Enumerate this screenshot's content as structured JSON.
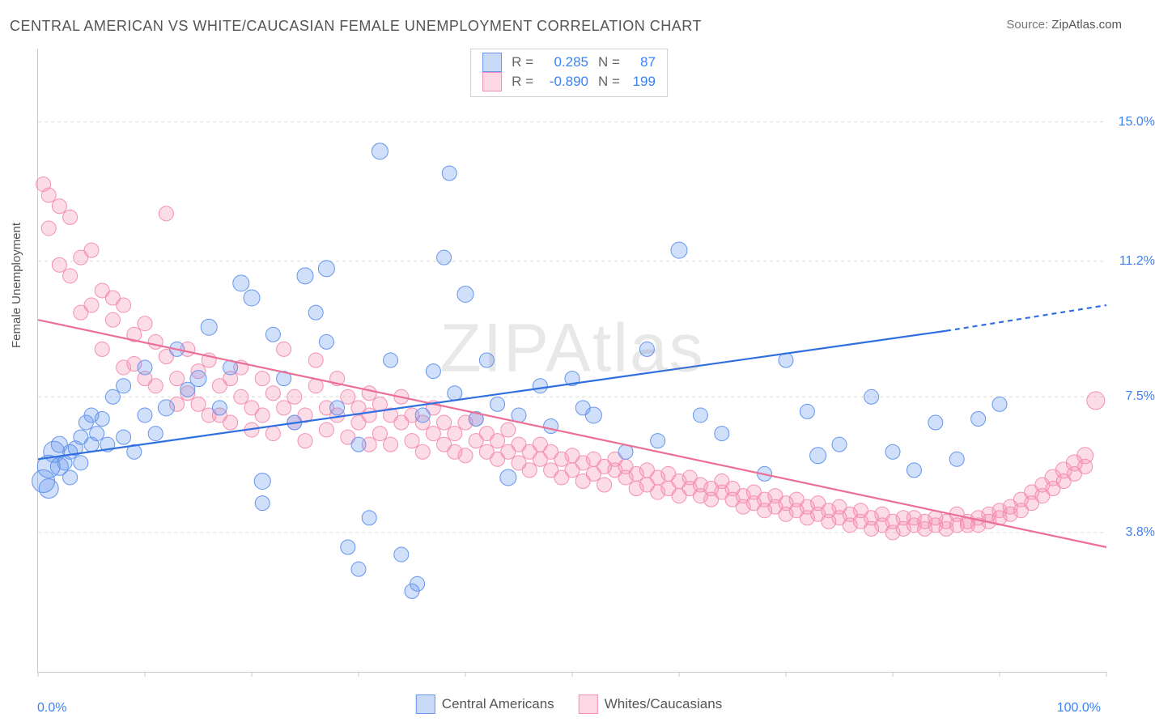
{
  "title": "CENTRAL AMERICAN VS WHITE/CAUCASIAN FEMALE UNEMPLOYMENT CORRELATION CHART",
  "source_label": "Source:",
  "source_value": "ZipAtlas.com",
  "watermark": "ZIPAtlas",
  "ylabel": "Female Unemployment",
  "legend": {
    "series1": {
      "r_label": "R =",
      "r_value": "0.285",
      "n_label": "N =",
      "n_value": "87"
    },
    "series2": {
      "r_label": "R =",
      "r_value": "-0.890",
      "n_label": "N =",
      "n_value": "199"
    }
  },
  "bottom_legend": {
    "series1": "Central Americans",
    "series2": "Whites/Caucasians"
  },
  "axes": {
    "x_min_label": "0.0%",
    "x_max_label": "100.0%",
    "x_range": [
      0,
      100
    ],
    "x_tick_positions": [
      0,
      10,
      20,
      30,
      40,
      50,
      60,
      70,
      80,
      90,
      100
    ],
    "y_range": [
      0,
      17
    ],
    "y_grid": [
      {
        "value": 3.8,
        "label": "3.8%"
      },
      {
        "value": 7.5,
        "label": "7.5%"
      },
      {
        "value": 11.2,
        "label": "11.2%"
      },
      {
        "value": 15.0,
        "label": "15.0%"
      }
    ]
  },
  "styling": {
    "background": "#ffffff",
    "grid_color": "#dcdcdc",
    "axis_color": "#c9c9c9",
    "tick_label_color": "#3b82f6",
    "text_color": "#555555",
    "series1_fill": "rgba(100,149,237,0.30)",
    "series1_stroke": "#6495ed",
    "series1_line": "#2f6fe0",
    "series2_fill": "rgba(244,143,177,0.30)",
    "series2_stroke": "#f48fb1",
    "series2_line": "#ec6f95",
    "marker_radius": 9,
    "marker_radius_large": 14,
    "line_width": 2.2
  },
  "trend_lines": {
    "series1": {
      "x1": 0,
      "y1": 5.8,
      "x2": 85,
      "y2": 9.3,
      "dash_from_x": 85,
      "dash_to": [
        100,
        10.0
      ]
    },
    "series2": {
      "x1": 0,
      "y1": 9.6,
      "x2": 100,
      "y2": 3.4
    }
  },
  "series1_points": [
    [
      0.5,
      5.2,
      14
    ],
    [
      1,
      5.6,
      14
    ],
    [
      1.5,
      6.0,
      13
    ],
    [
      1,
      5.0,
      12
    ],
    [
      2,
      5.6,
      11
    ],
    [
      2,
      6.2,
      10
    ],
    [
      2.5,
      5.7,
      9
    ],
    [
      3,
      6.0,
      9
    ],
    [
      3,
      5.3,
      9
    ],
    [
      3.5,
      6.1,
      9
    ],
    [
      4,
      6.4,
      9
    ],
    [
      4,
      5.7,
      9
    ],
    [
      4.5,
      6.8,
      9
    ],
    [
      5,
      6.2,
      9
    ],
    [
      5,
      7.0,
      9
    ],
    [
      5.5,
      6.5,
      9
    ],
    [
      6,
      6.9,
      9
    ],
    [
      6.5,
      6.2,
      9
    ],
    [
      7,
      7.5,
      9
    ],
    [
      8,
      6.4,
      9
    ],
    [
      8,
      7.8,
      9
    ],
    [
      9,
      6.0,
      9
    ],
    [
      10,
      7.0,
      9
    ],
    [
      10,
      8.3,
      9
    ],
    [
      11,
      6.5,
      9
    ],
    [
      12,
      7.2,
      10
    ],
    [
      13,
      8.8,
      9
    ],
    [
      14,
      7.7,
      9
    ],
    [
      15,
      8.0,
      10
    ],
    [
      16,
      9.4,
      10
    ],
    [
      17,
      7.2,
      9
    ],
    [
      18,
      8.3,
      9
    ],
    [
      19,
      10.6,
      10
    ],
    [
      20,
      10.2,
      10
    ],
    [
      21,
      4.6,
      9
    ],
    [
      21,
      5.2,
      10
    ],
    [
      22,
      9.2,
      9
    ],
    [
      23,
      8.0,
      9
    ],
    [
      24,
      6.8,
      9
    ],
    [
      25,
      10.8,
      10
    ],
    [
      26,
      9.8,
      9
    ],
    [
      27,
      9.0,
      9
    ],
    [
      27,
      11.0,
      10
    ],
    [
      28,
      7.2,
      9
    ],
    [
      29,
      3.4,
      9
    ],
    [
      30,
      2.8,
      9
    ],
    [
      31,
      4.2,
      9
    ],
    [
      32,
      14.2,
      10
    ],
    [
      33,
      8.5,
      9
    ],
    [
      34,
      3.2,
      9
    ],
    [
      35,
      2.2,
      9
    ],
    [
      35.5,
      2.4,
      9
    ],
    [
      36,
      7.0,
      9
    ],
    [
      37,
      8.2,
      9
    ],
    [
      38,
      11.3,
      9
    ],
    [
      38.5,
      13.6,
      9
    ],
    [
      39,
      7.6,
      9
    ],
    [
      40,
      10.3,
      10
    ],
    [
      41,
      6.9,
      9
    ],
    [
      42,
      8.5,
      9
    ],
    [
      43,
      7.3,
      9
    ],
    [
      44,
      5.3,
      10
    ],
    [
      45,
      7.0,
      9
    ],
    [
      47,
      7.8,
      9
    ],
    [
      48,
      6.7,
      9
    ],
    [
      50,
      8.0,
      9
    ],
    [
      51,
      7.2,
      9
    ],
    [
      52,
      7.0,
      10
    ],
    [
      55,
      6.0,
      9
    ],
    [
      57,
      8.8,
      9
    ],
    [
      58,
      6.3,
      9
    ],
    [
      60,
      11.5,
      10
    ],
    [
      62,
      7.0,
      9
    ],
    [
      64,
      6.5,
      9
    ],
    [
      68,
      5.4,
      9
    ],
    [
      70,
      8.5,
      9
    ],
    [
      72,
      7.1,
      9
    ],
    [
      73,
      5.9,
      10
    ],
    [
      75,
      6.2,
      9
    ],
    [
      78,
      7.5,
      9
    ],
    [
      80,
      6.0,
      9
    ],
    [
      82,
      5.5,
      9
    ],
    [
      84,
      6.8,
      9
    ],
    [
      86,
      5.8,
      9
    ],
    [
      88,
      6.9,
      9
    ],
    [
      90,
      7.3,
      9
    ],
    [
      30,
      6.2,
      9
    ]
  ],
  "series2_points": [
    [
      0.5,
      13.3,
      9
    ],
    [
      1,
      12.1,
      9
    ],
    [
      1,
      13.0,
      9
    ],
    [
      2,
      12.7,
      9
    ],
    [
      2,
      11.1,
      9
    ],
    [
      3,
      12.4,
      9
    ],
    [
      3,
      10.8,
      9
    ],
    [
      4,
      11.3,
      9
    ],
    [
      4,
      9.8,
      9
    ],
    [
      5,
      11.5,
      9
    ],
    [
      5,
      10.0,
      9
    ],
    [
      6,
      10.4,
      9
    ],
    [
      6,
      8.8,
      9
    ],
    [
      7,
      9.6,
      9
    ],
    [
      7,
      10.2,
      9
    ],
    [
      8,
      8.3,
      9
    ],
    [
      8,
      10.0,
      9
    ],
    [
      9,
      9.2,
      9
    ],
    [
      9,
      8.4,
      9
    ],
    [
      10,
      9.5,
      9
    ],
    [
      10,
      8.0,
      9
    ],
    [
      11,
      9.0,
      9
    ],
    [
      11,
      7.8,
      9
    ],
    [
      12,
      12.5,
      9
    ],
    [
      12,
      8.6,
      9
    ],
    [
      13,
      8.0,
      9
    ],
    [
      13,
      7.3,
      9
    ],
    [
      14,
      8.8,
      9
    ],
    [
      14,
      7.6,
      9
    ],
    [
      15,
      8.2,
      9
    ],
    [
      15,
      7.3,
      9
    ],
    [
      16,
      7.0,
      9
    ],
    [
      16,
      8.5,
      9
    ],
    [
      17,
      7.8,
      9
    ],
    [
      17,
      7.0,
      9
    ],
    [
      18,
      8.0,
      9
    ],
    [
      18,
      6.8,
      9
    ],
    [
      19,
      7.5,
      9
    ],
    [
      19,
      8.3,
      9
    ],
    [
      20,
      7.2,
      9
    ],
    [
      20,
      6.6,
      9
    ],
    [
      21,
      8.0,
      9
    ],
    [
      21,
      7.0,
      9
    ],
    [
      22,
      7.6,
      9
    ],
    [
      22,
      6.5,
      9
    ],
    [
      23,
      8.8,
      9
    ],
    [
      23,
      7.2,
      9
    ],
    [
      24,
      6.8,
      9
    ],
    [
      24,
      7.5,
      9
    ],
    [
      25,
      7.0,
      9
    ],
    [
      25,
      6.3,
      9
    ],
    [
      26,
      7.8,
      9
    ],
    [
      26,
      8.5,
      9
    ],
    [
      27,
      7.2,
      9
    ],
    [
      27,
      6.6,
      9
    ],
    [
      28,
      8.0,
      9
    ],
    [
      28,
      7.0,
      9
    ],
    [
      29,
      7.5,
      9
    ],
    [
      29,
      6.4,
      9
    ],
    [
      30,
      7.2,
      9
    ],
    [
      30,
      6.8,
      9
    ],
    [
      31,
      7.0,
      9
    ],
    [
      31,
      7.6,
      9
    ],
    [
      32,
      6.5,
      9
    ],
    [
      32,
      7.3,
      9
    ],
    [
      33,
      7.0,
      9
    ],
    [
      33,
      6.2,
      9
    ],
    [
      34,
      6.8,
      9
    ],
    [
      34,
      7.5,
      9
    ],
    [
      35,
      6.3,
      9
    ],
    [
      35,
      7.0,
      9
    ],
    [
      36,
      6.8,
      9
    ],
    [
      36,
      6.0,
      9
    ],
    [
      37,
      6.5,
      9
    ],
    [
      37,
      7.2,
      9
    ],
    [
      38,
      6.2,
      9
    ],
    [
      38,
      6.8,
      9
    ],
    [
      39,
      6.0,
      9
    ],
    [
      39,
      6.5,
      9
    ],
    [
      40,
      6.8,
      9
    ],
    [
      40,
      5.9,
      9
    ],
    [
      41,
      6.3,
      9
    ],
    [
      41,
      6.9,
      9
    ],
    [
      42,
      6.0,
      9
    ],
    [
      42,
      6.5,
      9
    ],
    [
      43,
      5.8,
      9
    ],
    [
      43,
      6.3,
      9
    ],
    [
      44,
      6.0,
      9
    ],
    [
      44,
      6.6,
      9
    ],
    [
      45,
      5.7,
      9
    ],
    [
      45,
      6.2,
      9
    ],
    [
      46,
      6.0,
      9
    ],
    [
      46,
      5.5,
      9
    ],
    [
      47,
      6.2,
      9
    ],
    [
      47,
      5.8,
      9
    ],
    [
      48,
      5.5,
      9
    ],
    [
      48,
      6.0,
      9
    ],
    [
      49,
      5.8,
      9
    ],
    [
      49,
      5.3,
      9
    ],
    [
      50,
      5.9,
      9
    ],
    [
      50,
      5.5,
      9
    ],
    [
      51,
      5.7,
      9
    ],
    [
      51,
      5.2,
      9
    ],
    [
      52,
      5.8,
      9
    ],
    [
      52,
      5.4,
      9
    ],
    [
      53,
      5.6,
      9
    ],
    [
      53,
      5.1,
      9
    ],
    [
      54,
      5.5,
      9
    ],
    [
      54,
      5.8,
      9
    ],
    [
      55,
      5.3,
      9
    ],
    [
      55,
      5.6,
      9
    ],
    [
      56,
      5.0,
      9
    ],
    [
      56,
      5.4,
      9
    ],
    [
      57,
      5.5,
      9
    ],
    [
      57,
      5.1,
      9
    ],
    [
      58,
      5.3,
      9
    ],
    [
      58,
      4.9,
      9
    ],
    [
      59,
      5.4,
      9
    ],
    [
      59,
      5.0,
      9
    ],
    [
      60,
      5.2,
      9
    ],
    [
      60,
      4.8,
      9
    ],
    [
      61,
      5.3,
      9
    ],
    [
      61,
      5.0,
      9
    ],
    [
      62,
      4.8,
      9
    ],
    [
      62,
      5.1,
      9
    ],
    [
      63,
      5.0,
      9
    ],
    [
      63,
      4.7,
      9
    ],
    [
      64,
      4.9,
      9
    ],
    [
      64,
      5.2,
      9
    ],
    [
      65,
      4.7,
      9
    ],
    [
      65,
      5.0,
      9
    ],
    [
      66,
      4.8,
      9
    ],
    [
      66,
      4.5,
      9
    ],
    [
      67,
      4.9,
      9
    ],
    [
      67,
      4.6,
      9
    ],
    [
      68,
      4.7,
      9
    ],
    [
      68,
      4.4,
      9
    ],
    [
      69,
      4.8,
      9
    ],
    [
      69,
      4.5,
      9
    ],
    [
      70,
      4.6,
      9
    ],
    [
      70,
      4.3,
      9
    ],
    [
      71,
      4.7,
      9
    ],
    [
      71,
      4.4,
      9
    ],
    [
      72,
      4.5,
      9
    ],
    [
      72,
      4.2,
      9
    ],
    [
      73,
      4.6,
      9
    ],
    [
      73,
      4.3,
      9
    ],
    [
      74,
      4.4,
      9
    ],
    [
      74,
      4.1,
      9
    ],
    [
      75,
      4.5,
      9
    ],
    [
      75,
      4.2,
      9
    ],
    [
      76,
      4.3,
      9
    ],
    [
      76,
      4.0,
      9
    ],
    [
      77,
      4.4,
      9
    ],
    [
      77,
      4.1,
      9
    ],
    [
      78,
      4.2,
      9
    ],
    [
      78,
      3.9,
      9
    ],
    [
      79,
      4.3,
      9
    ],
    [
      79,
      4.0,
      9
    ],
    [
      80,
      4.1,
      9
    ],
    [
      80,
      3.8,
      9
    ],
    [
      81,
      4.2,
      9
    ],
    [
      81,
      3.9,
      9
    ],
    [
      82,
      4.0,
      9
    ],
    [
      82,
      4.2,
      9
    ],
    [
      83,
      4.1,
      9
    ],
    [
      83,
      3.9,
      9
    ],
    [
      84,
      4.0,
      9
    ],
    [
      84,
      4.2,
      9
    ],
    [
      85,
      4.1,
      9
    ],
    [
      85,
      3.9,
      9
    ],
    [
      86,
      4.0,
      9
    ],
    [
      86,
      4.3,
      9
    ],
    [
      87,
      4.1,
      9
    ],
    [
      87,
      4.0,
      9
    ],
    [
      88,
      4.2,
      9
    ],
    [
      88,
      4.0,
      9
    ],
    [
      89,
      4.1,
      9
    ],
    [
      89,
      4.3,
      9
    ],
    [
      90,
      4.2,
      9
    ],
    [
      90,
      4.4,
      9
    ],
    [
      91,
      4.3,
      9
    ],
    [
      91,
      4.5,
      9
    ],
    [
      92,
      4.4,
      9
    ],
    [
      92,
      4.7,
      9
    ],
    [
      93,
      4.6,
      9
    ],
    [
      93,
      4.9,
      9
    ],
    [
      94,
      4.8,
      9
    ],
    [
      94,
      5.1,
      9
    ],
    [
      95,
      5.0,
      9
    ],
    [
      95,
      5.3,
      10
    ],
    [
      96,
      5.2,
      9
    ],
    [
      96,
      5.5,
      10
    ],
    [
      97,
      5.4,
      9
    ],
    [
      97,
      5.7,
      10
    ],
    [
      98,
      5.6,
      9
    ],
    [
      98,
      5.9,
      10
    ],
    [
      99,
      7.4,
      11
    ],
    [
      31,
      6.2,
      9
    ]
  ]
}
